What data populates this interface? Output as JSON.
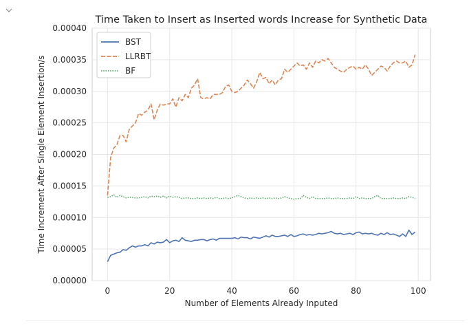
{
  "collapse_icon": "chevron-down-icon",
  "chart_data": {
    "type": "line",
    "title": "Time Taken to Insert as Inserted words Increase for Synthetic Data",
    "xlabel": "Number of Elements Already Inputed",
    "ylabel": "Time Increment After Single Element Insertion/s",
    "xlim": [
      -4.95,
      103.95
    ],
    "ylim": [
      0,
      0.0004
    ],
    "x_ticks": [
      0,
      20,
      40,
      60,
      80,
      100
    ],
    "x_tick_labels": [
      "0",
      "20",
      "40",
      "60",
      "80",
      "100"
    ],
    "y_ticks": [
      0,
      5e-05,
      0.0001,
      0.00015,
      0.0002,
      0.00025,
      0.0003,
      0.00035,
      0.0004
    ],
    "y_tick_labels": [
      "0.00000",
      "0.00005",
      "0.00010",
      "0.00015",
      "0.00020",
      "0.00025",
      "0.00030",
      "0.00035",
      "0.00040"
    ],
    "grid": true,
    "legend_position": "upper left",
    "x_start": 0,
    "x_step": 1,
    "series": [
      {
        "name": "BST",
        "color": "#4c72b0",
        "dash": "solid",
        "values": [
          3e-05,
          4e-05,
          4.2e-05,
          4.4e-05,
          4.5e-05,
          4.9e-05,
          4.8e-05,
          5.2e-05,
          5.5e-05,
          5.3e-05,
          5.5e-05,
          5.5e-05,
          5.7e-05,
          5.5e-05,
          6e-05,
          5.8e-05,
          6.1e-05,
          6e-05,
          6.1e-05,
          6.5e-05,
          6e-05,
          6.3e-05,
          6.4e-05,
          6.2e-05,
          6.8e-05,
          6.4e-05,
          6.3e-05,
          6.2e-05,
          6.4e-05,
          6.4e-05,
          6.5e-05,
          6.5e-05,
          6.3e-05,
          6.5e-05,
          6.6e-05,
          6.4e-05,
          6.7e-05,
          6.7e-05,
          6.7e-05,
          6.7e-05,
          6.7e-05,
          6.8e-05,
          6.6e-05,
          6.9e-05,
          6.8e-05,
          6.8e-05,
          6.6e-05,
          6.9e-05,
          6.8e-05,
          6.7e-05,
          6.9e-05,
          7.1e-05,
          6.9e-05,
          7.2e-05,
          7e-05,
          7e-05,
          7.1e-05,
          7.2e-05,
          7e-05,
          7.3e-05,
          7e-05,
          7.1e-05,
          7.3e-05,
          7.4e-05,
          7.2e-05,
          7.3e-05,
          7.2e-05,
          7.3e-05,
          7.5e-05,
          7.4e-05,
          7.5e-05,
          7.6e-05,
          7.8e-05,
          7.5e-05,
          7.4e-05,
          7.5e-05,
          7.3e-05,
          7.4e-05,
          7.5e-05,
          7.3e-05,
          7.6e-05,
          7.7e-05,
          7.4e-05,
          7.5e-05,
          7.4e-05,
          7.5e-05,
          7.3e-05,
          7.2e-05,
          7.5e-05,
          7.3e-05,
          7.6e-05,
          7.3e-05,
          7.4e-05,
          7.2e-05,
          7e-05,
          7.4e-05,
          7e-05,
          8e-05,
          7.3e-05,
          7.7e-05
        ]
      },
      {
        "name": "LLRBT",
        "color": "#dd8452",
        "dash": "dashed",
        "values": [
          0.000135,
          0.000195,
          0.00021,
          0.000215,
          0.00023,
          0.00023,
          0.00022,
          0.00024,
          0.000245,
          0.00025,
          0.000265,
          0.000262,
          0.000267,
          0.00027,
          0.00028,
          0.000255,
          0.00027,
          0.00028,
          0.000278,
          0.00028,
          0.00028,
          0.000288,
          0.000275,
          0.00029,
          0.000285,
          0.000295,
          0.00029,
          0.000305,
          0.00031,
          0.00032,
          0.00029,
          0.000288,
          0.00029,
          0.000288,
          0.000295,
          0.000295,
          0.000295,
          0.000298,
          0.000308,
          0.00031,
          0.0003,
          0.000298,
          0.0003,
          0.000305,
          0.00031,
          0.000318,
          0.000312,
          0.000305,
          0.000315,
          0.00033,
          0.00032,
          0.000322,
          0.000312,
          0.000318,
          0.00031,
          0.000318,
          0.00032,
          0.000335,
          0.00033,
          0.000335,
          0.00034,
          0.000345,
          0.00034,
          0.000342,
          0.000335,
          0.000345,
          0.000338,
          0.000348,
          0.000345,
          0.00035,
          0.000348,
          0.000352,
          0.000345,
          0.000338,
          0.000335,
          0.000332,
          0.00033,
          0.000335,
          0.000338,
          0.00034,
          0.000335,
          0.000338,
          0.000335,
          0.000342,
          0.000335,
          0.000325,
          0.00033,
          0.000335,
          0.00034,
          0.000338,
          0.000332,
          0.00034,
          0.000345,
          0.000348,
          0.000345,
          0.000345,
          0.000348,
          0.000338,
          0.000342,
          0.000358
        ]
      },
      {
        "name": "BF",
        "color": "#55a868",
        "dash": "dotted",
        "values": [
          0.000132,
          0.000133,
          0.000136,
          0.000132,
          0.000135,
          0.000133,
          0.000131,
          0.000132,
          0.000132,
          0.000131,
          0.000131,
          0.000132,
          0.000133,
          0.000131,
          0.000134,
          0.000133,
          0.000134,
          0.000132,
          0.000134,
          0.000131,
          0.000134,
          0.000132,
          0.000133,
          0.000132,
          0.00013,
          0.000131,
          0.000131,
          0.00013,
          0.00013,
          0.000131,
          0.00013,
          0.000131,
          0.00013,
          0.000131,
          0.00013,
          0.000132,
          0.00013,
          0.00013,
          0.000131,
          0.00013,
          0.000131,
          0.000133,
          0.000135,
          0.000133,
          0.000131,
          0.00013,
          0.000131,
          0.00013,
          0.000131,
          0.00013,
          0.000131,
          0.00013,
          0.000131,
          0.00013,
          0.000131,
          0.00013,
          0.000131,
          0.000133,
          0.000131,
          0.00013,
          0.000129,
          0.00013,
          0.00013,
          0.000135,
          0.000132,
          0.00013,
          0.000133,
          0.00013,
          0.00013,
          0.00013,
          0.00013,
          0.000131,
          0.00013,
          0.00013,
          0.000131,
          0.00013,
          0.00013,
          0.00013,
          0.000131,
          0.00013,
          0.000133,
          0.00013,
          0.000131,
          0.00013,
          0.00013,
          0.00013,
          0.000133,
          0.000135,
          0.00013,
          0.00013,
          0.00013,
          0.00013,
          0.000131,
          0.00013,
          0.00013,
          0.000131,
          0.00013,
          0.000133,
          0.000132,
          0.00013
        ]
      }
    ]
  }
}
